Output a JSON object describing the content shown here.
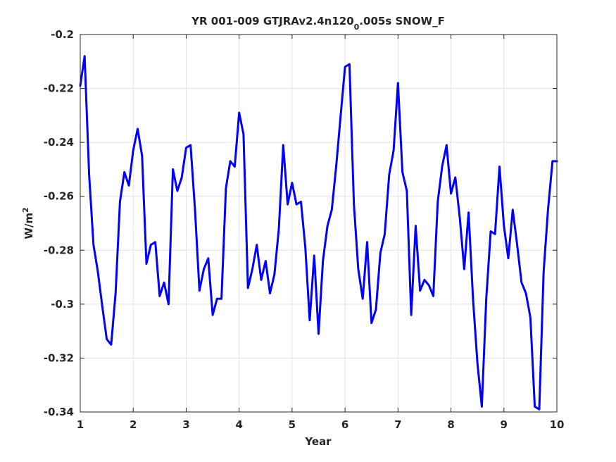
{
  "chart_data": {
    "type": "line",
    "title": "YR 001-009 GTJRAv2.4n120",
    "title_subscript": "0",
    "title_suffix": ".005s SNOW_F",
    "xlabel": "Year",
    "ylabel": "W/m",
    "ylabel_superscript": "2",
    "xlim": [
      1,
      10
    ],
    "ylim": [
      -0.34,
      -0.2
    ],
    "xticks": [
      1,
      2,
      3,
      4,
      5,
      6,
      7,
      8,
      9,
      10
    ],
    "xtick_labels": [
      "1",
      "2",
      "3",
      "4",
      "5",
      "6",
      "7",
      "8",
      "9",
      "10"
    ],
    "yticks": [
      -0.34,
      -0.32,
      -0.3,
      -0.28,
      -0.26,
      -0.24,
      -0.22,
      -0.2
    ],
    "ytick_labels": [
      "-0.34",
      "-0.32",
      "-0.3",
      "-0.28",
      "-0.26",
      "-0.24",
      "-0.22",
      "-0.2"
    ],
    "grid": true,
    "line_color": "#0000ff",
    "series": [
      {
        "x": [
          1.0,
          1.083,
          1.167,
          1.25,
          1.333,
          1.417,
          1.5,
          1.583,
          1.667,
          1.75,
          1.833,
          1.917,
          2.0,
          2.083,
          2.167,
          2.25,
          2.333,
          2.417,
          2.5,
          2.583,
          2.667,
          2.75,
          2.833,
          2.917,
          3.0,
          3.083,
          3.167,
          3.25,
          3.333,
          3.417,
          3.5,
          3.583,
          3.667,
          3.75,
          3.833,
          3.917,
          4.0,
          4.083,
          4.167,
          4.25,
          4.333,
          4.417,
          4.5,
          4.583,
          4.667,
          4.75,
          4.833,
          4.917,
          5.0,
          5.083,
          5.167,
          5.25,
          5.333,
          5.417,
          5.5,
          5.583,
          5.667,
          5.75,
          5.833,
          5.917,
          6.0,
          6.083,
          6.167,
          6.25,
          6.333,
          6.417,
          6.5,
          6.583,
          6.667,
          6.75,
          6.833,
          6.917,
          7.0,
          7.083,
          7.167,
          7.25,
          7.333,
          7.417,
          7.5,
          7.583,
          7.667,
          7.75,
          7.833,
          7.917,
          8.0,
          8.083,
          8.167,
          8.25,
          8.333,
          8.417,
          8.5,
          8.583,
          8.667,
          8.75,
          8.833,
          8.917,
          9.0,
          9.083,
          9.167,
          9.25,
          9.333,
          9.417,
          9.5,
          9.583,
          9.667,
          9.75,
          9.833,
          9.917,
          10.0
        ],
        "y": [
          -0.219,
          -0.208,
          -0.252,
          -0.278,
          -0.288,
          -0.301,
          -0.313,
          -0.315,
          -0.296,
          -0.262,
          -0.251,
          -0.256,
          -0.243,
          -0.235,
          -0.245,
          -0.285,
          -0.278,
          -0.277,
          -0.297,
          -0.292,
          -0.3,
          -0.25,
          -0.258,
          -0.253,
          -0.242,
          -0.241,
          -0.265,
          -0.295,
          -0.287,
          -0.283,
          -0.304,
          -0.298,
          -0.298,
          -0.257,
          -0.247,
          -0.249,
          -0.229,
          -0.237,
          -0.294,
          -0.287,
          -0.278,
          -0.291,
          -0.284,
          -0.296,
          -0.289,
          -0.272,
          -0.241,
          -0.263,
          -0.255,
          -0.263,
          -0.262,
          -0.279,
          -0.306,
          -0.282,
          -0.311,
          -0.284,
          -0.271,
          -0.265,
          -0.249,
          -0.23,
          -0.212,
          -0.211,
          -0.263,
          -0.287,
          -0.298,
          -0.277,
          -0.307,
          -0.302,
          -0.281,
          -0.274,
          -0.252,
          -0.243,
          -0.218,
          -0.251,
          -0.258,
          -0.304,
          -0.271,
          -0.295,
          -0.291,
          -0.293,
          -0.297,
          -0.262,
          -0.249,
          -0.241,
          -0.259,
          -0.253,
          -0.268,
          -0.287,
          -0.266,
          -0.298,
          -0.322,
          -0.338,
          -0.298,
          -0.273,
          -0.274,
          -0.249,
          -0.271,
          -0.283,
          -0.265,
          -0.278,
          -0.292,
          -0.296,
          -0.305,
          -0.338,
          -0.339,
          -0.288,
          -0.265,
          -0.247,
          -0.247
        ]
      }
    ]
  }
}
